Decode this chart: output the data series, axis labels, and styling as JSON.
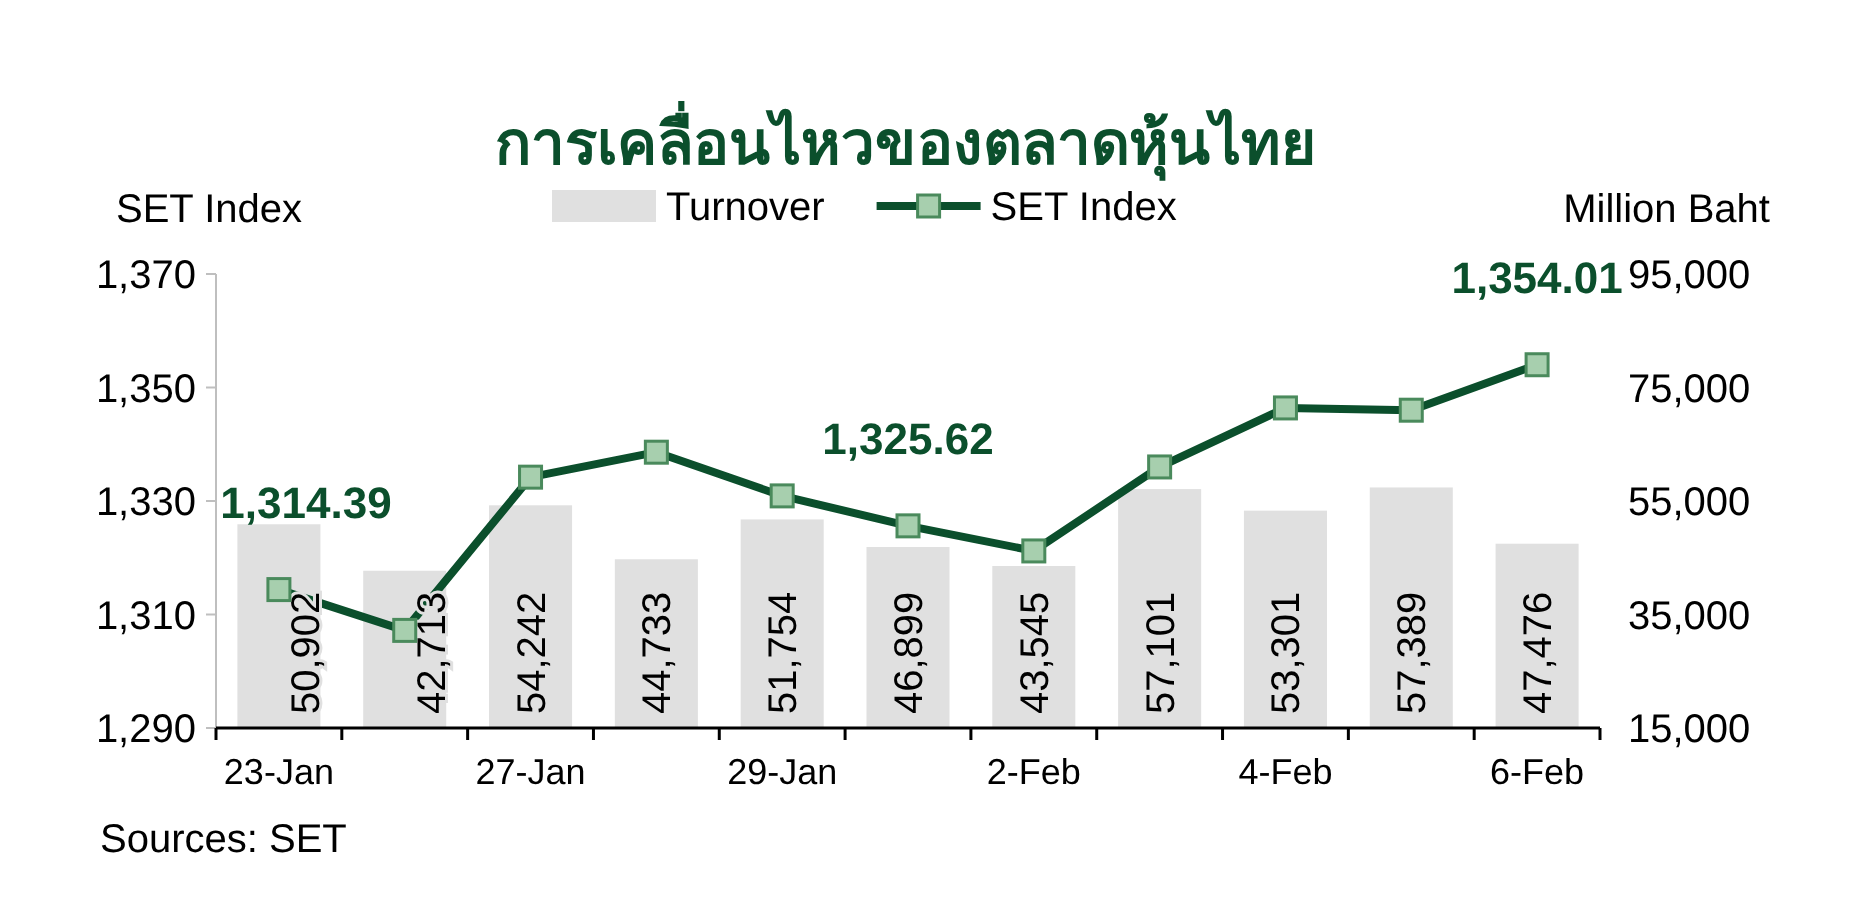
{
  "chart_data": {
    "type": "bar",
    "title": "การเคลื่อนไหวของตลาดหุ้นไทย",
    "ylabel": "SET Index",
    "y2label": "Million Baht",
    "categories": [
      "23-Jan",
      null,
      "27-Jan",
      null,
      "29-Jan",
      null,
      "2-Feb",
      null,
      "4-Feb",
      null,
      "6-Feb"
    ],
    "series": [
      {
        "name": "Turnover",
        "axis": "y2",
        "color": "#e0e0e0",
        "values": [
          50902,
          42713,
          54242,
          44733,
          51754,
          46899,
          43545,
          57101,
          53301,
          57389,
          47476
        ],
        "value_labels": [
          "50,902",
          "42,713",
          "54,242",
          "44,733",
          "51,754",
          "46,899",
          "43,545",
          "57,101",
          "53,301",
          "57,389",
          "47,476"
        ]
      },
      {
        "name": "SET Index",
        "type": "line",
        "color": "#0b4f2c",
        "values": [
          1314.39,
          1307.2,
          1334.2,
          1338.6,
          1330.9,
          1325.62,
          1321.2,
          1336.0,
          1346.4,
          1346.0,
          1354.01
        ]
      }
    ],
    "marker": "square",
    "ylim": [
      1290,
      1370
    ],
    "yticks": [
      {
        "value": 1290,
        "label": "1,290"
      },
      {
        "value": 1310,
        "label": "1,310"
      },
      {
        "value": 1330,
        "label": "1,330"
      },
      {
        "value": 1350,
        "label": "1,350"
      },
      {
        "value": 1370,
        "label": "1,370"
      }
    ],
    "y2lim": [
      15000,
      95000
    ],
    "y2ticks": [
      {
        "value": 15000,
        "label": "15,000"
      },
      {
        "value": 35000,
        "label": "35,000"
      },
      {
        "value": 55000,
        "label": "55,000"
      },
      {
        "value": 75000,
        "label": "75,000"
      },
      {
        "value": 95000,
        "label": "95,000"
      }
    ],
    "legend": "top",
    "annotations": [
      {
        "text": "1,314.39",
        "x": "23-Jan",
        "y": 1314.39
      },
      {
        "text": "1,325.62",
        "y": 1325.62
      },
      {
        "text": "1,354.01",
        "x": "6-Feb",
        "y": 1354.01
      },
      "Sources: SET"
    ]
  }
}
